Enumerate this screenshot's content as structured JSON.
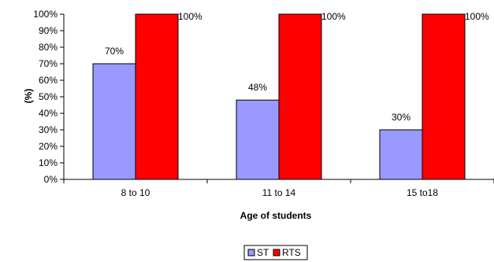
{
  "chart_data": {
    "type": "bar",
    "categories": [
      "8 to 10",
      "11 to 14",
      "15 to18"
    ],
    "series": [
      {
        "name": "ST",
        "values": [
          70,
          48,
          30
        ],
        "color": "#9999ff",
        "labels": [
          "70%",
          "48%",
          "30%"
        ]
      },
      {
        "name": "RTS",
        "values": [
          100,
          100,
          100
        ],
        "color": "#ff0000",
        "labels": [
          "100%",
          "100%",
          "100%"
        ]
      }
    ],
    "xlabel": "Age of students",
    "ylabel": "(%)",
    "ylim": [
      0,
      100
    ],
    "yticks": [
      "0%",
      "10%",
      "20%",
      "30%",
      "40%",
      "50%",
      "60%",
      "70%",
      "80%",
      "90%",
      "100%"
    ],
    "legend_position": "bottom",
    "grid": false
  }
}
